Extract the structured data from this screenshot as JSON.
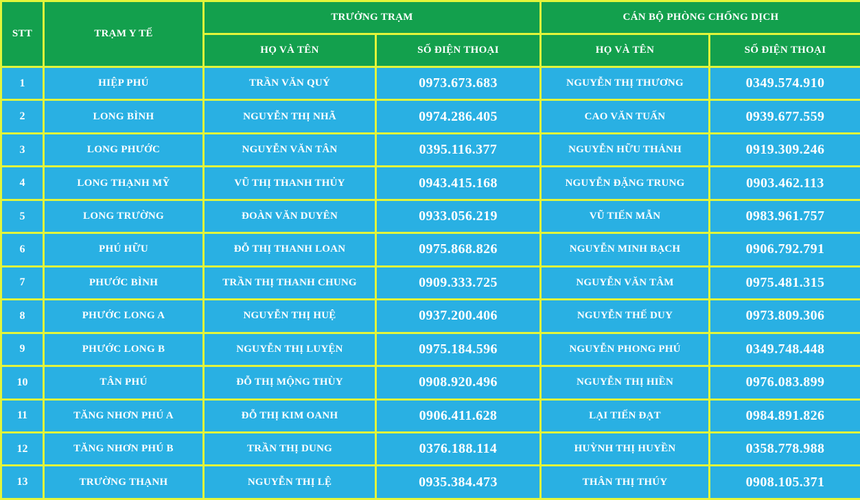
{
  "table": {
    "headers": {
      "stt": "STT",
      "station": "TRẠM Y TẾ",
      "leader_group": "TRƯỞNG TRẠM",
      "officer_group": "CÁN BỘ PHÒNG CHỐNG DỊCH",
      "name_col": "HỌ VÀ TÊN",
      "phone_col": "SỐ ĐIỆN THOẠI"
    },
    "rows": [
      {
        "stt": "1",
        "station": "HIỆP PHÚ",
        "leader_name": "TRẦN VĂN QUÝ",
        "leader_phone": "0973.673.683",
        "officer_name": "NGUYỄN THỊ THƯƠNG",
        "officer_phone": "0349.574.910"
      },
      {
        "stt": "2",
        "station": "LONG BÌNH",
        "leader_name": "NGUYỄN THỊ NHÃ",
        "leader_phone": "0974.286.405",
        "officer_name": "CAO VĂN TUẤN",
        "officer_phone": "0939.677.559"
      },
      {
        "stt": "3",
        "station": "LONG PHƯỚC",
        "leader_name": "NGUYỄN VĂN TÂN",
        "leader_phone": "0395.116.377",
        "officer_name": "NGUYỄN HỮU THẢNH",
        "officer_phone": "0919.309.246"
      },
      {
        "stt": "4",
        "station": "LONG THẠNH MỸ",
        "leader_name": "VŨ THỊ THANH THỦY",
        "leader_phone": "0943.415.168",
        "officer_name": "NGUYỄN ĐẶNG TRUNG",
        "officer_phone": "0903.462.113"
      },
      {
        "stt": "5",
        "station": "LONG TRƯỜNG",
        "leader_name": "ĐOÀN VĂN DUYÊN",
        "leader_phone": "0933.056.219",
        "officer_name": "VŨ TIẾN MẪN",
        "officer_phone": "0983.961.757"
      },
      {
        "stt": "6",
        "station": "PHÚ HỮU",
        "leader_name": "ĐỖ THỊ THANH LOAN",
        "leader_phone": "0975.868.826",
        "officer_name": "NGUYỄN MINH BẠCH",
        "officer_phone": "0906.792.791"
      },
      {
        "stt": "7",
        "station": "PHƯỚC BÌNH",
        "leader_name": "TRẦN THỊ THANH CHUNG",
        "leader_phone": "0909.333.725",
        "officer_name": "NGUYỄN VĂN TÂM",
        "officer_phone": "0975.481.315"
      },
      {
        "stt": "8",
        "station": "PHƯỚC LONG A",
        "leader_name": "NGUYỄN THỊ HUỆ",
        "leader_phone": "0937.200.406",
        "officer_name": "NGUYỄN THẾ DUY",
        "officer_phone": "0973.809.306"
      },
      {
        "stt": "9",
        "station": "PHƯỚC LONG B",
        "leader_name": "NGUYỄN THỊ LUYỆN",
        "leader_phone": "0975.184.596",
        "officer_name": "NGUYỄN PHONG PHÚ",
        "officer_phone": "0349.748.448"
      },
      {
        "stt": "10",
        "station": "TÂN PHÚ",
        "leader_name": "ĐỖ THỊ MỘNG THÙY",
        "leader_phone": "0908.920.496",
        "officer_name": "NGUYỄN THỊ HIỀN",
        "officer_phone": "0976.083.899"
      },
      {
        "stt": "11",
        "station": "TĂNG NHƠN PHÚ A",
        "leader_name": "ĐỖ THỊ KIM OANH",
        "leader_phone": "0906.411.628",
        "officer_name": "LẠI TIẾN ĐẠT",
        "officer_phone": "0984.891.826"
      },
      {
        "stt": "12",
        "station": "TĂNG NHƠN PHÚ B",
        "leader_name": "TRẦN THỊ DUNG",
        "leader_phone": "0376.188.114",
        "officer_name": "HUỲNH THỊ HUYỀN",
        "officer_phone": "0358.778.988"
      },
      {
        "stt": "13",
        "station": "TRƯỜNG THẠNH",
        "leader_name": "NGUYỄN THỊ LỆ",
        "leader_phone": "0935.384.473",
        "officer_name": "THÂN THỊ THÚY",
        "officer_phone": "0908.105.371"
      }
    ]
  },
  "colors": {
    "header_bg": "#13a04d",
    "cell_bg": "#29b0e3",
    "border": "#e3f53a",
    "text": "#ffffff"
  }
}
